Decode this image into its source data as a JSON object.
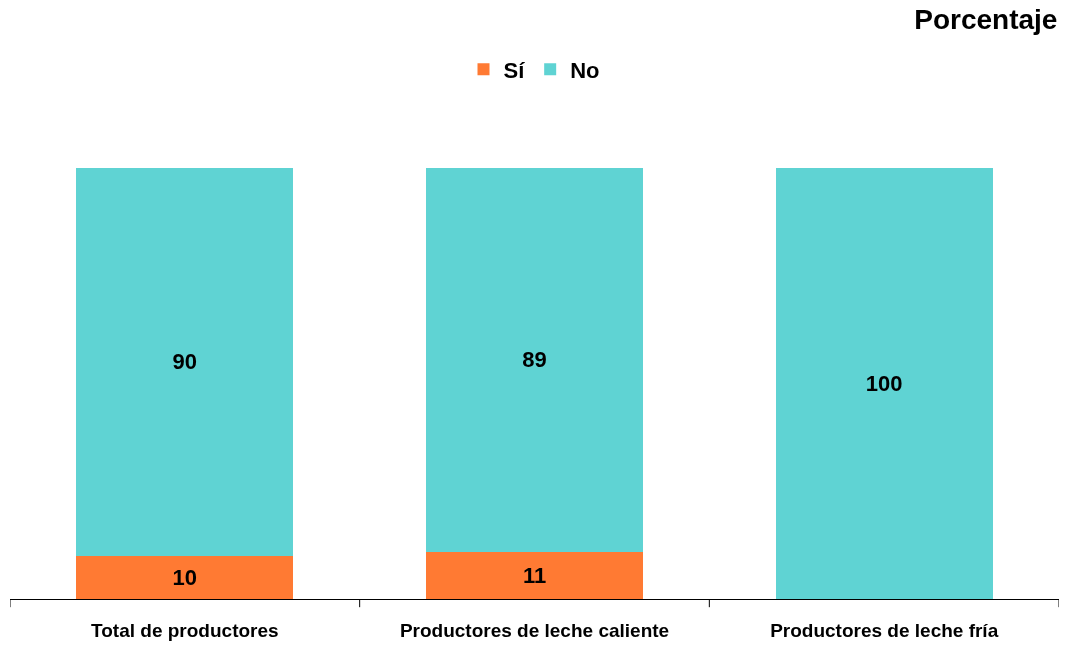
{
  "chart_data": {
    "type": "bar",
    "title": "Porcentaje",
    "categories": [
      "Total de productores",
      "Productores de leche caliente",
      "Productores de leche fría"
    ],
    "series": [
      {
        "name": "Sí",
        "color": "#ff7a33",
        "values": [
          10,
          11,
          null
        ]
      },
      {
        "name": "No",
        "color": "#5fd3d3",
        "values": [
          90,
          89,
          100
        ]
      }
    ],
    "stacked": true,
    "data_labels": true,
    "legend": "top",
    "tick_labels": "x"
  }
}
